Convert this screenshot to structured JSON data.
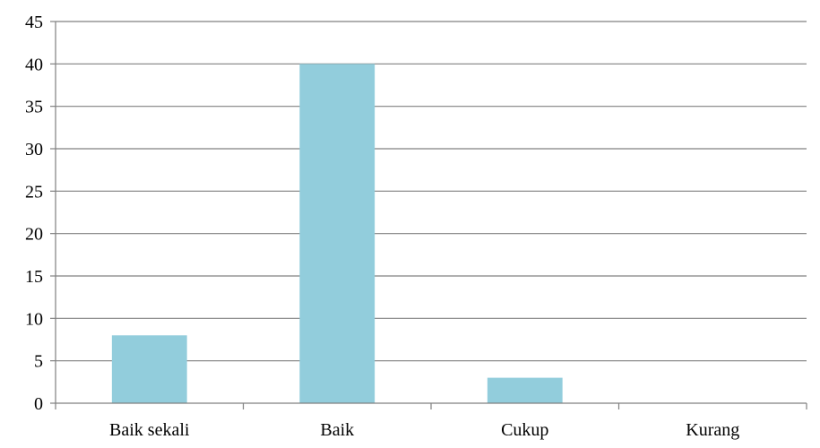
{
  "chart_data": {
    "type": "bar",
    "categories": [
      "Baik sekali",
      "Baik",
      "Cukup",
      "Kurang"
    ],
    "values": [
      8,
      40,
      3,
      0
    ],
    "title": "",
    "xlabel": "",
    "ylabel": "",
    "ylim": [
      0,
      45
    ],
    "yticks": [
      "0",
      "5",
      "10",
      "15",
      "20",
      "25",
      "30",
      "35",
      "40",
      "45"
    ],
    "grid": true,
    "legend": "none",
    "colors": {
      "bar": "#92CDDC",
      "grid": "#808080",
      "axis": "#808080"
    }
  }
}
